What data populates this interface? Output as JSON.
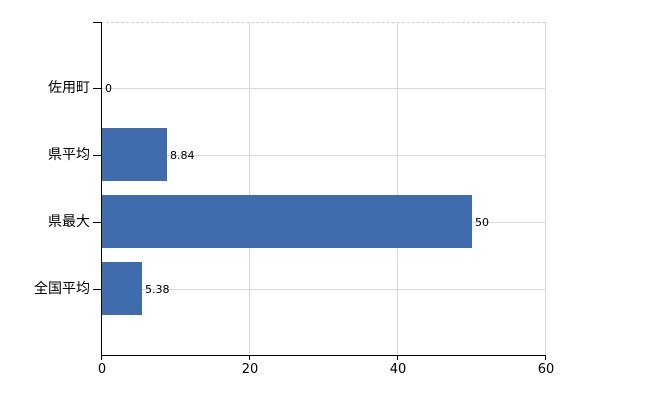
{
  "chart_data": {
    "type": "bar",
    "orientation": "horizontal",
    "title": "",
    "xlabel": "",
    "ylabel": "",
    "categories": [
      "佐用町",
      "県平均",
      "県最大",
      "全国平均"
    ],
    "values": [
      0,
      8.84,
      50,
      5.38
    ],
    "value_labels": [
      "0",
      "8.84",
      "50",
      "5.38"
    ],
    "x_ticks": [
      0,
      20,
      40,
      60
    ],
    "x_tick_labels": [
      "0",
      "20",
      "40",
      "60"
    ],
    "xlim": [
      0,
      60
    ],
    "grid": true,
    "legend": false,
    "colors": {
      "bar": "#3e6cad",
      "axis": "#000000",
      "v_gridline": "#d9d9d9",
      "h_gridline": "#d4dcd4",
      "top_border": "#d8cccc",
      "text": "#000000"
    }
  }
}
